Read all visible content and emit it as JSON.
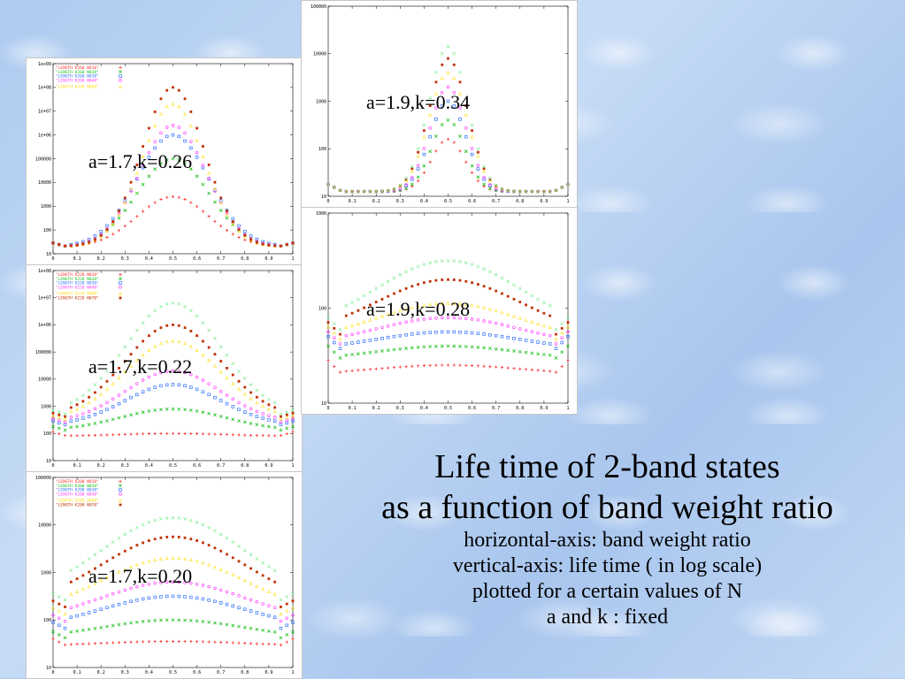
{
  "chart_data": [
    {
      "type": "scatter",
      "label": "a=1.7,k=0.26",
      "log_y": true,
      "ylim": [
        10,
        1000000000
      ],
      "xlim": [
        0,
        1
      ],
      "x_ticks": [
        "0",
        "0.1",
        "0.2",
        "0.3",
        "0.4",
        "0.5",
        "0.6",
        "0.7",
        "0.8",
        "0.9",
        "1"
      ],
      "y_ticks": [
        "10",
        "100",
        "1000",
        "10000",
        "100000",
        "1e+06",
        "1e+07",
        "1e+08",
        "1e+09"
      ],
      "legend": [
        "\"LENGTH K260 N010\"",
        "\"LENGTH K260 N020\"",
        "\"LENGTH K260 N030\"",
        "\"LENGTH K260 N040\"",
        "\"LENGTH K260 N060\""
      ],
      "series": [
        {
          "color": "#ff3030",
          "marker": "+",
          "log_peak": 3.4,
          "log_edge": 1.3,
          "width": 0.15,
          "floor": 1.25
        },
        {
          "color": "#20c020",
          "marker": "x",
          "log_peak": 5.0,
          "log_edge": 1.3,
          "width": 0.15,
          "floor": 1.25
        },
        {
          "color": "#3070ff",
          "marker": "s",
          "log_peak": 6.0,
          "log_edge": 1.3,
          "width": 0.15,
          "floor": 1.25
        },
        {
          "color": "#ff40ff",
          "marker": "o",
          "log_peak": 6.4,
          "log_edge": 1.3,
          "width": 0.14,
          "floor": 1.25
        },
        {
          "color": "#ffe020",
          "marker": "t",
          "log_peak": 7.3,
          "log_edge": 1.3,
          "width": 0.13,
          "floor": 1.25
        },
        {
          "color": "#c03000",
          "marker": "d",
          "log_peak": 8.0,
          "log_edge": 1.3,
          "width": 0.13,
          "floor": 1.25
        }
      ]
    },
    {
      "type": "scatter",
      "label": "a=1.7,k=0.22",
      "log_y": true,
      "ylim": [
        10,
        100000000
      ],
      "xlim": [
        0,
        1
      ],
      "x_ticks": [
        "0",
        "0.1",
        "0.2",
        "0.3",
        "0.4",
        "0.5",
        "0.6",
        "0.7",
        "0.8",
        "0.9",
        "1"
      ],
      "y_ticks": [
        "10",
        "100",
        "1000",
        "10000",
        "100000",
        "1e+06",
        "1e+07",
        "1e+08"
      ],
      "legend": [
        "\"LENGTH K220 N010\"",
        "\"LENGTH K220 N020\"",
        "\"LENGTH K220 N030\"",
        "\"LENGTH K220 N040\"",
        "\"LENGTH K220 N060\"",
        "\"LENGTH K220 N070\""
      ],
      "series": [
        {
          "color": "#ff3030",
          "marker": "+",
          "log_peak": 2.0,
          "log_edge": 1.9,
          "width": 0.22,
          "floor": 1.8
        },
        {
          "color": "#20c020",
          "marker": "x",
          "log_peak": 2.9,
          "log_edge": 2.1,
          "width": 0.22,
          "floor": 2.0
        },
        {
          "color": "#3070ff",
          "marker": "s",
          "log_peak": 3.8,
          "log_edge": 2.3,
          "width": 0.2,
          "floor": 2.2
        },
        {
          "color": "#ff40ff",
          "marker": "o",
          "log_peak": 4.3,
          "log_edge": 2.4,
          "width": 0.2,
          "floor": 2.3
        },
        {
          "color": "#ffe020",
          "marker": "t",
          "log_peak": 5.4,
          "log_edge": 2.5,
          "width": 0.2,
          "floor": 2.4
        },
        {
          "color": "#c03000",
          "marker": "d",
          "log_peak": 6.0,
          "log_edge": 2.6,
          "width": 0.2,
          "floor": 2.5
        },
        {
          "color": "#90f0a0",
          "marker": "x",
          "log_peak": 6.8,
          "log_edge": 2.7,
          "width": 0.2,
          "floor": 2.6
        }
      ]
    },
    {
      "type": "scatter",
      "label": "a=1.7,k=0.20",
      "log_y": true,
      "ylim": [
        10,
        100000
      ],
      "xlim": [
        0,
        1
      ],
      "x_ticks": [
        "0",
        "0.1",
        "0.2",
        "0.3",
        "0.4",
        "0.5",
        "0.6",
        "0.7",
        "0.8",
        "0.9",
        "1"
      ],
      "y_ticks": [
        "10",
        "100",
        "1000",
        "10000",
        "100000"
      ],
      "legend": [
        "\"LENGTH K200 N010\"",
        "\"LENGTH K200 N020\"",
        "\"LENGTH K200 N030\"",
        "\"LENGTH K200 N040\"",
        "\"LENGTH K200 N060\"",
        "\"LENGTH K200 N070\""
      ],
      "series": [
        {
          "color": "#ff3030",
          "marker": "+",
          "log_peak": 1.55,
          "log_edge": 1.45,
          "width": 0.3,
          "floor": 1.4
        },
        {
          "color": "#20c020",
          "marker": "x",
          "log_peak": 2.0,
          "log_edge": 1.6,
          "width": 0.3,
          "floor": 1.55
        },
        {
          "color": "#3070ff",
          "marker": "s",
          "log_peak": 2.5,
          "log_edge": 1.8,
          "width": 0.3,
          "floor": 1.75
        },
        {
          "color": "#ff40ff",
          "marker": "o",
          "log_peak": 2.8,
          "log_edge": 1.95,
          "width": 0.3,
          "floor": 1.9
        },
        {
          "color": "#ffe020",
          "marker": "t",
          "log_peak": 3.3,
          "log_edge": 2.1,
          "width": 0.3,
          "floor": 2.05
        },
        {
          "color": "#c03000",
          "marker": "d",
          "log_peak": 3.75,
          "log_edge": 2.25,
          "width": 0.3,
          "floor": 2.2
        },
        {
          "color": "#90f0a0",
          "marker": "x",
          "log_peak": 4.15,
          "log_edge": 2.4,
          "width": 0.3,
          "floor": 2.35
        }
      ]
    },
    {
      "type": "scatter",
      "label": "a=1.9,k=0.34",
      "log_y": true,
      "ylim": [
        10,
        100000
      ],
      "xlim": [
        0,
        1
      ],
      "x_ticks": [
        "0",
        "0.1",
        "0.2",
        "0.3",
        "0.4",
        "0.5",
        "0.6",
        "0.7",
        "0.8",
        "0.9",
        "1"
      ],
      "y_ticks": [
        "10",
        "100",
        "1000",
        "10000",
        "100000"
      ],
      "legend": [],
      "series": [
        {
          "color": "#ff3030",
          "marker": "+",
          "log_peak": 2.2,
          "log_edge": 1.1,
          "width": 0.07,
          "floor": 1.1
        },
        {
          "color": "#20c020",
          "marker": "x",
          "log_peak": 2.6,
          "log_edge": 1.1,
          "width": 0.07,
          "floor": 1.1
        },
        {
          "color": "#3070ff",
          "marker": "s",
          "log_peak": 3.0,
          "log_edge": 1.1,
          "width": 0.075,
          "floor": 1.1
        },
        {
          "color": "#ff40ff",
          "marker": "o",
          "log_peak": 3.3,
          "log_edge": 1.1,
          "width": 0.075,
          "floor": 1.1
        },
        {
          "color": "#ffe020",
          "marker": "t",
          "log_peak": 3.6,
          "log_edge": 1.1,
          "width": 0.08,
          "floor": 1.1
        },
        {
          "color": "#c03000",
          "marker": "d",
          "log_peak": 3.9,
          "log_edge": 1.1,
          "width": 0.08,
          "floor": 1.1
        },
        {
          "color": "#90f0a0",
          "marker": "x",
          "log_peak": 4.15,
          "log_edge": 1.1,
          "width": 0.08,
          "floor": 1.1
        }
      ]
    },
    {
      "type": "scatter",
      "label": "a=1.9,k=0.28",
      "log_y": true,
      "ylim": [
        10,
        1000
      ],
      "xlim": [
        0,
        1
      ],
      "x_ticks": [
        "0",
        "0.1",
        "0.2",
        "0.3",
        "0.4",
        "0.5",
        "0.6",
        "0.7",
        "0.8",
        "0.9",
        "1"
      ],
      "y_ticks": [
        "10",
        "100",
        "1000"
      ],
      "legend": [],
      "series": [
        {
          "color": "#ff3030",
          "marker": "+",
          "log_peak": 1.4,
          "log_edge": 1.3,
          "width": 0.3,
          "floor": 1.3
        },
        {
          "color": "#20c020",
          "marker": "x",
          "log_peak": 1.6,
          "log_edge": 1.45,
          "width": 0.3,
          "floor": 1.4
        },
        {
          "color": "#3070ff",
          "marker": "s",
          "log_peak": 1.75,
          "log_edge": 1.55,
          "width": 0.3,
          "floor": 1.5
        },
        {
          "color": "#ff40ff",
          "marker": "o",
          "log_peak": 1.9,
          "log_edge": 1.6,
          "width": 0.3,
          "floor": 1.52
        },
        {
          "color": "#ffe020",
          "marker": "t",
          "log_peak": 2.05,
          "log_edge": 1.65,
          "width": 0.3,
          "floor": 1.55
        },
        {
          "color": "#c03000",
          "marker": "d",
          "log_peak": 2.3,
          "log_edge": 1.7,
          "width": 0.3,
          "floor": 1.55
        },
        {
          "color": "#90f0a0",
          "marker": "x",
          "log_peak": 2.5,
          "log_edge": 1.75,
          "width": 0.3,
          "floor": 1.57
        }
      ]
    }
  ],
  "caption": {
    "title_line1": "Life time of 2-band states",
    "title_line2": "as a function of band weight ratio",
    "desc1": "horizontal-axis: band weight ratio",
    "desc2": "vertical-axis: life time ( in log scale)",
    "desc3": "plotted for a certain values of N",
    "desc4": "a and k : fixed"
  },
  "annotations": {
    "a1": "a=1.7,k=0.26",
    "a2": "a=1.7,k=0.22",
    "a3": "a=1.7,k=0.20",
    "a4": "a=1.9,k=0.34",
    "a5": "a=1.9,k=0.28"
  }
}
